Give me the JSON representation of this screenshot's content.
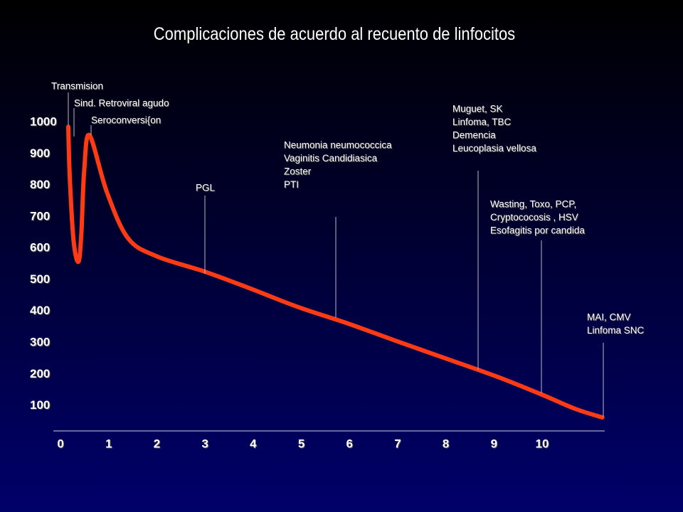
{
  "chart_data": {
    "type": "line",
    "title": "Complicaciones de acuerdo al recuento de linfocitos",
    "series": [
      {
        "color": "#ff3a14",
        "x": [
          0.16,
          0.19,
          0.27,
          0.37,
          0.43,
          0.49,
          0.6,
          0.96,
          1.4,
          1.99,
          2.99,
          3.91,
          4.94,
          5.97,
          7.0,
          8.04,
          9.07,
          10.0,
          10.69,
          11.25
        ],
        "values": [
          986,
          828,
          624,
          557,
          643,
          846,
          959,
          779,
          632,
          575,
          526,
          474,
          413,
          361,
          304,
          248,
          192,
          135,
          90,
          63
        ]
      }
    ],
    "xlim": [
      -0.15,
      11.3
    ],
    "xticks": [
      0,
      1,
      2,
      3,
      4,
      5,
      6,
      7,
      8,
      9,
      10
    ],
    "ylim": [
      20,
      1000
    ],
    "yticks": [
      100,
      200,
      300,
      400,
      500,
      600,
      700,
      800,
      900,
      1000
    ],
    "annotations": [
      [
        "Transmision"
      ],
      [
        "Sind. Retroviral agudo"
      ],
      [
        "Seroconversi{on"
      ],
      [
        "PGL"
      ],
      [
        "Neumonia neumococcica",
        "Vaginitis Candidiasica",
        "Zoster",
        "PTI"
      ],
      [
        "Muguet, SK",
        "Linfoma, TBC",
        "Demencia",
        "Leucoplasia vellosa"
      ],
      [
        "Wasting, Toxo,  PCP,",
        "Cryptococosis , HSV",
        "Esofagitis por candida"
      ],
      [
        "MAI, CMV",
        "Linfoma SNC"
      ]
    ]
  }
}
